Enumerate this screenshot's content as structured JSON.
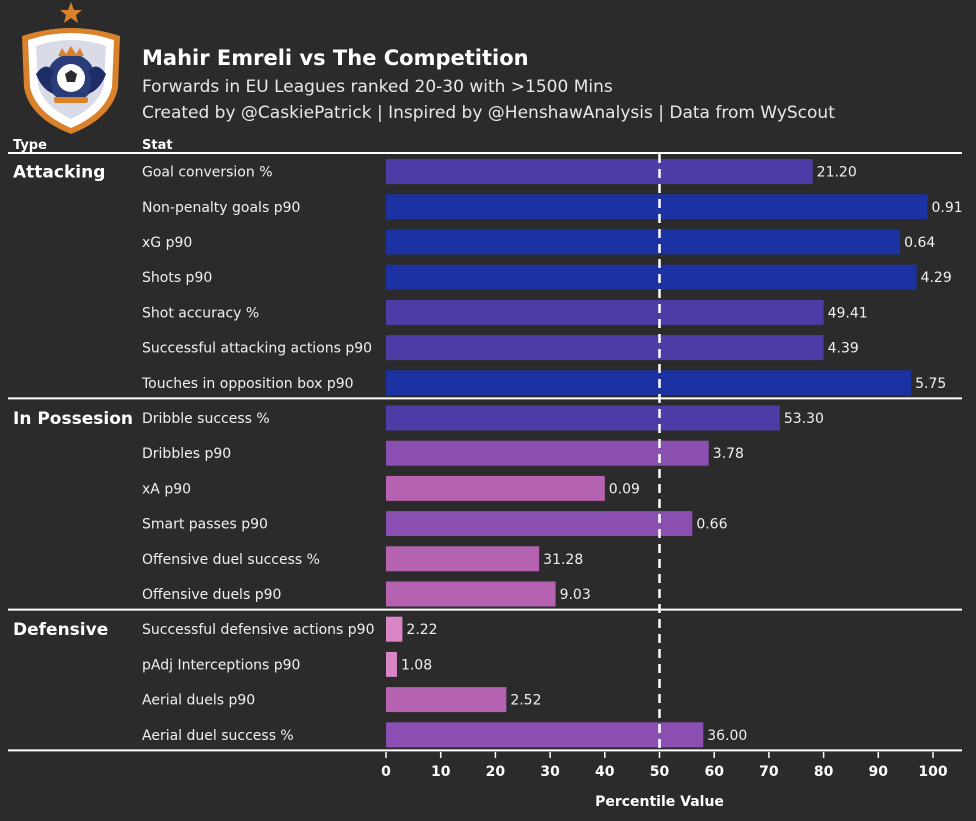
{
  "header": {
    "title": "Mahir Emreli vs The Competition",
    "subtitle": "Forwards in EU Leagues ranked 20-30 with >1500 Mins",
    "credit": "Created by @CaskiePatrick | Inspired by @HenshawAnalysis | Data from WyScout"
  },
  "crest": {
    "icon": "club-crest-icon",
    "primary_color": "#2a3d7a",
    "border_color": "#d9822b"
  },
  "colors": {
    "background": "#2b2b2b",
    "text": "#ffffff",
    "high": "#1c32a3",
    "mid_high": "#4b3ca6",
    "mid": "#8a4fb0",
    "low_mid": "#b562b0",
    "low": "#d886c5"
  },
  "chart_data": {
    "type": "bar",
    "orientation": "horizontal",
    "column_headers": [
      "Type",
      "Stat"
    ],
    "xlabel": "Percentile Value",
    "xlim": [
      0,
      100
    ],
    "xticks": [
      0,
      10,
      20,
      30,
      40,
      50,
      60,
      70,
      80,
      90,
      100
    ],
    "reference_line": 50,
    "groups": [
      {
        "name": "Attacking",
        "stats": [
          {
            "label": "Goal conversion %",
            "percentile": 78,
            "value_label": "21.20",
            "color": "#4b3ca6"
          },
          {
            "label": "Non-penalty goals p90",
            "percentile": 99,
            "value_label": "0.91",
            "color": "#1c32a3"
          },
          {
            "label": "xG p90",
            "percentile": 94,
            "value_label": "0.64",
            "color": "#1c32a3"
          },
          {
            "label": "Shots p90",
            "percentile": 97,
            "value_label": "4.29",
            "color": "#1c32a3"
          },
          {
            "label": "Shot accuracy %",
            "percentile": 80,
            "value_label": "49.41",
            "color": "#4b3ca6"
          },
          {
            "label": "Successful attacking actions p90",
            "percentile": 80,
            "value_label": "4.39",
            "color": "#4b3ca6"
          },
          {
            "label": "Touches in opposition box p90",
            "percentile": 96,
            "value_label": "5.75",
            "color": "#1c32a3"
          }
        ]
      },
      {
        "name": "In Possesion",
        "stats": [
          {
            "label": "Dribble success %",
            "percentile": 72,
            "value_label": "53.30",
            "color": "#4b3ca6"
          },
          {
            "label": "Dribbles p90",
            "percentile": 59,
            "value_label": "3.78",
            "color": "#8a4fb0"
          },
          {
            "label": "xA p90",
            "percentile": 40,
            "value_label": "0.09",
            "color": "#b562b0"
          },
          {
            "label": "Smart passes p90",
            "percentile": 56,
            "value_label": "0.66",
            "color": "#8a4fb0"
          },
          {
            "label": "Offensive duel success %",
            "percentile": 28,
            "value_label": "31.28",
            "color": "#b562b0"
          },
          {
            "label": "Offensive duels p90",
            "percentile": 31,
            "value_label": "9.03",
            "color": "#b562b0"
          }
        ]
      },
      {
        "name": "Defensive",
        "stats": [
          {
            "label": "Successful defensive actions p90",
            "percentile": 3,
            "value_label": "2.22",
            "color": "#d886c5"
          },
          {
            "label": "pAdj Interceptions p90",
            "percentile": 2,
            "value_label": "1.08",
            "color": "#d886c5"
          },
          {
            "label": "Aerial duels p90",
            "percentile": 22,
            "value_label": "2.52",
            "color": "#b562b0"
          },
          {
            "label": "Aerial duel success %",
            "percentile": 58,
            "value_label": "36.00",
            "color": "#8a4fb0"
          }
        ]
      }
    ]
  }
}
